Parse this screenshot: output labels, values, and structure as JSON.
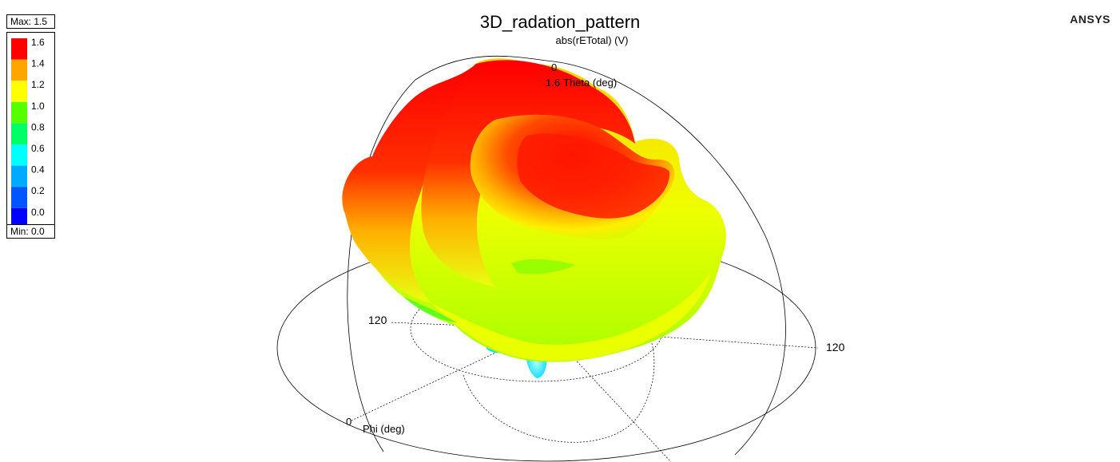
{
  "chart_data": {
    "type": "3d-polar-surface",
    "title": "3D_radation_pattern",
    "quantity": "abs(rETotal) (V)",
    "legend": {
      "max_label": "Max: 1.5",
      "min_label": "Min: 0.0",
      "ticks": [
        "1.6",
        "1.4",
        "1.2",
        "1.0",
        "0.8",
        "0.6",
        "0.4",
        "0.2",
        "0.0"
      ],
      "colors": [
        "#ff0000",
        "#ffa500",
        "#ffff00",
        "#55ff00",
        "#00ff66",
        "#00ffff",
        "#00aaff",
        "#0055ff",
        "#0000ff"
      ],
      "placement": "top-left"
    },
    "axes": {
      "theta_label": "Theta (deg)",
      "phi_label": "Phi (deg)",
      "theta_zero_label": "0",
      "theta_mark_label": "1.6",
      "tick_left": "120",
      "tick_right": "120",
      "phi_zero_label": "0"
    }
  },
  "brand": "ANSYS"
}
